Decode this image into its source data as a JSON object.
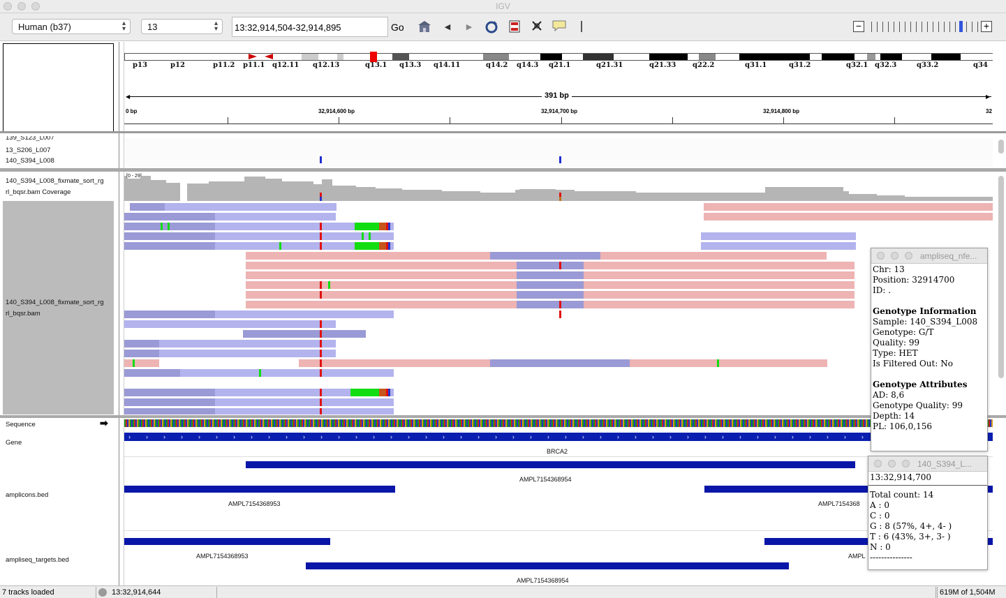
{
  "app": {
    "title": "IGV"
  },
  "toolbar": {
    "genome": "Human (b37)",
    "chromosome": "13",
    "locus": "13:32,914,504-32,914,895",
    "go_label": "Go",
    "icons": [
      "home-icon",
      "back-icon",
      "forward-icon",
      "refresh-icon",
      "roi-icon",
      "fit-icon",
      "popup-text-icon",
      "divider-icon"
    ],
    "zoom_minus": "−",
    "zoom_plus": "+"
  },
  "ideogram": {
    "bands": [
      "p13",
      "p12",
      "p11.2",
      "p11.1",
      "q12.11",
      "q12.13",
      "q13.1",
      "q13.3",
      "q14.11",
      "q14.2",
      "q14.3",
      "q21.1",
      "q21.31",
      "q21.33",
      "q22.2",
      "q31.1",
      "q31.2",
      "q32.1",
      "q32.3",
      "q33.2",
      "q34"
    ]
  },
  "ruler": {
    "span": "391 bp",
    "positions": [
      "0 bp",
      "32,914,600 bp",
      "32,914,700 bp",
      "32,914,800 bp",
      "32"
    ]
  },
  "vcf_samples": [
    "139_S123_L007",
    "13_S206_L007",
    "140_S394_L008"
  ],
  "tracks": {
    "coverage_name_1": "140_S394_L008_fixmate_sort_rg",
    "coverage_name_2": "rl_bqsr.bam Coverage",
    "coverage_range": "[0 - 29]",
    "alignment_name_1": "140_S394_L008_fixmate_sort_rg",
    "alignment_name_2": "rl_bqsr.bam",
    "sequence": "Sequence",
    "gene": "Gene",
    "gene_name": "BRCA2",
    "amplicons": "amplicons.bed",
    "targets": "ampliseq_targets.bed",
    "features": {
      "a1": "AMPL7154368954",
      "a2": "AMPL7154368953",
      "a3": "AMPL7154368",
      "t1": "AMPL7154368953",
      "t2": "AMPL",
      "t3": "AMPL7154368954"
    }
  },
  "popup_vcf": {
    "title": "ampliseq_nfe...",
    "lines": [
      "Chr: 13",
      "Position: 32914700",
      "ID: .",
      "",
      "Genotype Information",
      "Sample: 140_S394_L008",
      "Genotype: G/T",
      "Quality: 99",
      "Type: HET",
      "Is Filtered Out: No",
      "",
      "Genotype Attributes",
      "AD: 8,6",
      "Genotype Quality: 99",
      "Depth: 14",
      "PL: 106,0,156"
    ]
  },
  "popup_cov": {
    "title": "140_S394_L...",
    "position": "13:32,914,700",
    "lines": [
      "Total count: 14",
      "A : 0",
      "C : 0",
      "G : 8 (57%, 4+, 4- )",
      "T : 6 (43%, 3+, 3- )",
      "N : 0",
      "---------------"
    ]
  },
  "status": {
    "tracks": "7 tracks loaded",
    "position": "13:32,914,644",
    "memory": "619M of 1,504M"
  },
  "colors": {
    "forward": "#b3b3ee",
    "reverse": "#eeb3b3",
    "insert": "#9a9ad6",
    "mismatch_red": "#e01010",
    "mismatch_green": "#11dd11",
    "feature": "#0a16a8"
  }
}
